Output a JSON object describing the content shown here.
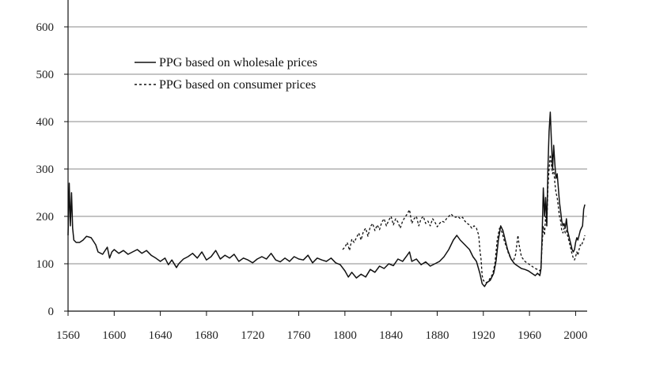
{
  "chart_data": {
    "type": "line",
    "title": "",
    "xlabel": "",
    "ylabel": "",
    "xlim": [
      1560,
      2010
    ],
    "ylim": [
      0,
      600
    ],
    "x_ticks": [
      1560,
      1600,
      1640,
      1680,
      1720,
      1760,
      1800,
      1840,
      1880,
      1920,
      1960,
      2000
    ],
    "y_ticks": [
      0,
      100,
      200,
      300,
      400,
      500,
      600
    ],
    "grid": "horizontal",
    "legend_position": "top-left",
    "series": [
      {
        "name": "PPG based on wholesale prices",
        "style": "solid",
        "points": [
          [
            1560,
            160
          ],
          [
            1561,
            270
          ],
          [
            1562,
            180
          ],
          [
            1563,
            250
          ],
          [
            1564,
            175
          ],
          [
            1565,
            150
          ],
          [
            1567,
            145
          ],
          [
            1570,
            145
          ],
          [
            1573,
            150
          ],
          [
            1576,
            158
          ],
          [
            1580,
            155
          ],
          [
            1584,
            140
          ],
          [
            1586,
            125
          ],
          [
            1590,
            120
          ],
          [
            1594,
            135
          ],
          [
            1596,
            112
          ],
          [
            1598,
            125
          ],
          [
            1600,
            130
          ],
          [
            1604,
            122
          ],
          [
            1608,
            128
          ],
          [
            1612,
            120
          ],
          [
            1616,
            125
          ],
          [
            1620,
            130
          ],
          [
            1624,
            122
          ],
          [
            1628,
            128
          ],
          [
            1632,
            118
          ],
          [
            1636,
            112
          ],
          [
            1640,
            105
          ],
          [
            1644,
            112
          ],
          [
            1647,
            98
          ],
          [
            1650,
            108
          ],
          [
            1654,
            92
          ],
          [
            1656,
            100
          ],
          [
            1660,
            110
          ],
          [
            1664,
            115
          ],
          [
            1668,
            122
          ],
          [
            1672,
            112
          ],
          [
            1676,
            125
          ],
          [
            1680,
            108
          ],
          [
            1684,
            115
          ],
          [
            1688,
            128
          ],
          [
            1692,
            110
          ],
          [
            1696,
            118
          ],
          [
            1700,
            112
          ],
          [
            1704,
            120
          ],
          [
            1708,
            105
          ],
          [
            1712,
            112
          ],
          [
            1716,
            108
          ],
          [
            1720,
            102
          ],
          [
            1724,
            110
          ],
          [
            1728,
            115
          ],
          [
            1732,
            110
          ],
          [
            1736,
            122
          ],
          [
            1740,
            108
          ],
          [
            1744,
            104
          ],
          [
            1748,
            112
          ],
          [
            1752,
            105
          ],
          [
            1756,
            115
          ],
          [
            1760,
            110
          ],
          [
            1764,
            108
          ],
          [
            1768,
            118
          ],
          [
            1772,
            102
          ],
          [
            1776,
            112
          ],
          [
            1780,
            108
          ],
          [
            1784,
            105
          ],
          [
            1788,
            112
          ],
          [
            1792,
            102
          ],
          [
            1796,
            98
          ],
          [
            1800,
            85
          ],
          [
            1803,
            72
          ],
          [
            1806,
            82
          ],
          [
            1810,
            70
          ],
          [
            1814,
            78
          ],
          [
            1818,
            72
          ],
          [
            1822,
            88
          ],
          [
            1826,
            82
          ],
          [
            1830,
            95
          ],
          [
            1834,
            90
          ],
          [
            1838,
            100
          ],
          [
            1842,
            96
          ],
          [
            1846,
            110
          ],
          [
            1850,
            105
          ],
          [
            1854,
            118
          ],
          [
            1856,
            125
          ],
          [
            1858,
            105
          ],
          [
            1862,
            110
          ],
          [
            1866,
            98
          ],
          [
            1870,
            104
          ],
          [
            1874,
            95
          ],
          [
            1878,
            100
          ],
          [
            1882,
            105
          ],
          [
            1886,
            115
          ],
          [
            1890,
            130
          ],
          [
            1894,
            150
          ],
          [
            1897,
            160
          ],
          [
            1900,
            150
          ],
          [
            1904,
            140
          ],
          [
            1908,
            130
          ],
          [
            1911,
            115
          ],
          [
            1914,
            105
          ],
          [
            1917,
            80
          ],
          [
            1919,
            58
          ],
          [
            1921,
            52
          ],
          [
            1923,
            60
          ],
          [
            1926,
            65
          ],
          [
            1929,
            80
          ],
          [
            1931,
            105
          ],
          [
            1933,
            150
          ],
          [
            1935,
            180
          ],
          [
            1937,
            170
          ],
          [
            1939,
            150
          ],
          [
            1941,
            130
          ],
          [
            1944,
            110
          ],
          [
            1947,
            100
          ],
          [
            1950,
            95
          ],
          [
            1953,
            90
          ],
          [
            1956,
            88
          ],
          [
            1959,
            85
          ],
          [
            1962,
            80
          ],
          [
            1965,
            75
          ],
          [
            1967,
            80
          ],
          [
            1969,
            75
          ],
          [
            1970,
            90
          ],
          [
            1971,
            160
          ],
          [
            1972,
            260
          ],
          [
            1973,
            200
          ],
          [
            1974,
            240
          ],
          [
            1975,
            180
          ],
          [
            1976,
            300
          ],
          [
            1977,
            380
          ],
          [
            1978,
            420
          ],
          [
            1979,
            360
          ],
          [
            1980,
            300
          ],
          [
            1981,
            350
          ],
          [
            1982,
            310
          ],
          [
            1983,
            280
          ],
          [
            1984,
            290
          ],
          [
            1985,
            260
          ],
          [
            1986,
            230
          ],
          [
            1987,
            210
          ],
          [
            1988,
            190
          ],
          [
            1989,
            180
          ],
          [
            1990,
            185
          ],
          [
            1991,
            175
          ],
          [
            1992,
            195
          ],
          [
            1993,
            170
          ],
          [
            1994,
            160
          ],
          [
            1995,
            150
          ],
          [
            1996,
            140
          ],
          [
            1997,
            130
          ],
          [
            1998,
            125
          ],
          [
            1999,
            130
          ],
          [
            2000,
            145
          ],
          [
            2001,
            155
          ],
          [
            2002,
            150
          ],
          [
            2003,
            160
          ],
          [
            2004,
            170
          ],
          [
            2005,
            175
          ],
          [
            2006,
            180
          ],
          [
            2007,
            215
          ],
          [
            2008,
            225
          ]
        ]
      },
      {
        "name": "PPG based on consumer prices",
        "style": "dashed",
        "points": [
          [
            1798,
            130
          ],
          [
            1800,
            135
          ],
          [
            1802,
            145
          ],
          [
            1804,
            128
          ],
          [
            1806,
            152
          ],
          [
            1808,
            145
          ],
          [
            1810,
            155
          ],
          [
            1812,
            165
          ],
          [
            1814,
            150
          ],
          [
            1816,
            168
          ],
          [
            1818,
            175
          ],
          [
            1820,
            158
          ],
          [
            1822,
            178
          ],
          [
            1824,
            185
          ],
          [
            1826,
            170
          ],
          [
            1828,
            182
          ],
          [
            1830,
            172
          ],
          [
            1832,
            188
          ],
          [
            1834,
            195
          ],
          [
            1836,
            180
          ],
          [
            1838,
            192
          ],
          [
            1840,
            200
          ],
          [
            1842,
            182
          ],
          [
            1844,
            195
          ],
          [
            1846,
            188
          ],
          [
            1848,
            175
          ],
          [
            1850,
            190
          ],
          [
            1852,
            198
          ],
          [
            1854,
            205
          ],
          [
            1856,
            214
          ],
          [
            1858,
            185
          ],
          [
            1860,
            195
          ],
          [
            1862,
            200
          ],
          [
            1864,
            180
          ],
          [
            1866,
            195
          ],
          [
            1868,
            200
          ],
          [
            1870,
            185
          ],
          [
            1872,
            190
          ],
          [
            1874,
            180
          ],
          [
            1876,
            195
          ],
          [
            1878,
            188
          ],
          [
            1880,
            178
          ],
          [
            1882,
            185
          ],
          [
            1884,
            190
          ],
          [
            1886,
            188
          ],
          [
            1888,
            195
          ],
          [
            1890,
            200
          ],
          [
            1892,
            205
          ],
          [
            1894,
            200
          ],
          [
            1896,
            198
          ],
          [
            1898,
            200
          ],
          [
            1900,
            195
          ],
          [
            1902,
            198
          ],
          [
            1904,
            190
          ],
          [
            1906,
            185
          ],
          [
            1908,
            182
          ],
          [
            1910,
            175
          ],
          [
            1912,
            180
          ],
          [
            1914,
            175
          ],
          [
            1916,
            160
          ],
          [
            1917,
            130
          ],
          [
            1918,
            110
          ],
          [
            1919,
            75
          ],
          [
            1920,
            65
          ],
          [
            1922,
            60
          ],
          [
            1924,
            62
          ],
          [
            1926,
            70
          ],
          [
            1928,
            78
          ],
          [
            1930,
            100
          ],
          [
            1932,
            150
          ],
          [
            1934,
            175
          ],
          [
            1936,
            168
          ],
          [
            1938,
            150
          ],
          [
            1940,
            135
          ],
          [
            1942,
            120
          ],
          [
            1944,
            110
          ],
          [
            1946,
            105
          ],
          [
            1948,
            120
          ],
          [
            1950,
            160
          ],
          [
            1951,
            140
          ],
          [
            1953,
            115
          ],
          [
            1956,
            105
          ],
          [
            1959,
            100
          ],
          [
            1962,
            95
          ],
          [
            1965,
            90
          ],
          [
            1967,
            88
          ],
          [
            1969,
            85
          ],
          [
            1970,
            95
          ],
          [
            1971,
            140
          ],
          [
            1972,
            180
          ],
          [
            1973,
            160
          ],
          [
            1974,
            200
          ],
          [
            1975,
            180
          ],
          [
            1976,
            260
          ],
          [
            1977,
            300
          ],
          [
            1978,
            330
          ],
          [
            1979,
            310
          ],
          [
            1980,
            290
          ],
          [
            1981,
            300
          ],
          [
            1982,
            270
          ],
          [
            1983,
            250
          ],
          [
            1984,
            240
          ],
          [
            1985,
            220
          ],
          [
            1986,
            200
          ],
          [
            1987,
            190
          ],
          [
            1988,
            170
          ],
          [
            1989,
            165
          ],
          [
            1990,
            175
          ],
          [
            1991,
            165
          ],
          [
            1992,
            170
          ],
          [
            1993,
            160
          ],
          [
            1994,
            150
          ],
          [
            1995,
            140
          ],
          [
            1996,
            130
          ],
          [
            1997,
            120
          ],
          [
            1998,
            112
          ],
          [
            1999,
            108
          ],
          [
            2000,
            115
          ],
          [
            2001,
            125
          ],
          [
            2002,
            118
          ],
          [
            2003,
            130
          ],
          [
            2004,
            140
          ],
          [
            2005,
            138
          ],
          [
            2006,
            145
          ],
          [
            2007,
            150
          ],
          [
            2008,
            160
          ]
        ]
      }
    ]
  },
  "caption": ""
}
